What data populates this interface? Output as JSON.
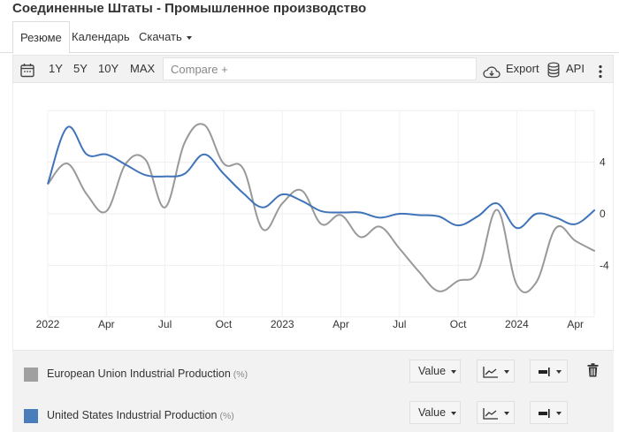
{
  "page": {
    "title": "Соединенные Штаты - Промышленное производство"
  },
  "tabs": [
    {
      "label": "Резюме",
      "active": true
    },
    {
      "label": "Календарь",
      "active": false
    },
    {
      "label": "Скачать",
      "active": false,
      "dropdown": true
    }
  ],
  "toolbar": {
    "calendar_icon": "calendar-icon",
    "ranges": [
      "1Y",
      "5Y",
      "10Y",
      "MAX"
    ],
    "compare_placeholder": "Compare +",
    "export_label": "Export",
    "export_icon": "cloud-download-icon",
    "api_label": "API",
    "api_icon": "database-icon",
    "more_icon": "vertical-ellipsis-icon"
  },
  "legend": {
    "series": [
      {
        "name": "European Union Industrial Production",
        "unit": "(%)",
        "color": "#a0a0a0",
        "value_label": "Value",
        "deletable": true
      },
      {
        "name": "United States Industrial Production",
        "unit": "(%)",
        "color": "#4a7ebb",
        "value_label": "Value",
        "deletable": false
      }
    ]
  },
  "colors": {
    "eu_line": "#999999",
    "us_line": "#3f74b8",
    "grid": "#eeeeee",
    "toolbar_bg": "#f2f2f2"
  },
  "chart_data": {
    "type": "line",
    "title": "Соединенные Штаты - Промышленное производство",
    "xlabel": "",
    "ylabel": "%",
    "ylim": [
      -8,
      8
    ],
    "yticks": [
      4,
      0,
      -4
    ],
    "x_tick_labels": [
      "2022",
      "Apr",
      "Jul",
      "Oct",
      "2023",
      "Apr",
      "Jul",
      "Oct",
      "2024",
      "Apr"
    ],
    "grid": true,
    "legend_position": "bottom",
    "x": [
      "2022-01",
      "2022-02",
      "2022-03",
      "2022-04",
      "2022-05",
      "2022-06",
      "2022-07",
      "2022-08",
      "2022-09",
      "2022-10",
      "2022-11",
      "2022-12",
      "2023-01",
      "2023-02",
      "2023-03",
      "2023-04",
      "2023-05",
      "2023-06",
      "2023-07",
      "2023-08",
      "2023-09",
      "2023-10",
      "2023-11",
      "2023-12",
      "2024-01",
      "2024-02",
      "2024-03",
      "2024-04",
      "2024-05"
    ],
    "series": [
      {
        "name": "European Union Industrial Production",
        "color": "#999999",
        "values": [
          2.3,
          3.9,
          1.5,
          0.2,
          3.9,
          4.2,
          0.5,
          5.5,
          6.9,
          3.9,
          3.5,
          -1.2,
          0.8,
          1.8,
          -0.8,
          -0.1,
          -1.8,
          -1.0,
          -2.7,
          -4.5,
          -6.0,
          -5.2,
          -4.5,
          0.3,
          -5.5,
          -5.3,
          -1.1,
          -2.1,
          -2.9
        ]
      },
      {
        "name": "United States Industrial Production",
        "color": "#3f74b8",
        "values": [
          2.3,
          6.7,
          4.6,
          4.6,
          3.8,
          3.0,
          2.9,
          3.1,
          4.6,
          3.1,
          1.6,
          0.5,
          1.5,
          1.0,
          0.2,
          0.1,
          0.1,
          -0.3,
          0.0,
          -0.1,
          -0.2,
          -0.9,
          -0.2,
          0.8,
          -1.1,
          0.0,
          -0.3,
          -0.8,
          0.3
        ]
      }
    ]
  }
}
